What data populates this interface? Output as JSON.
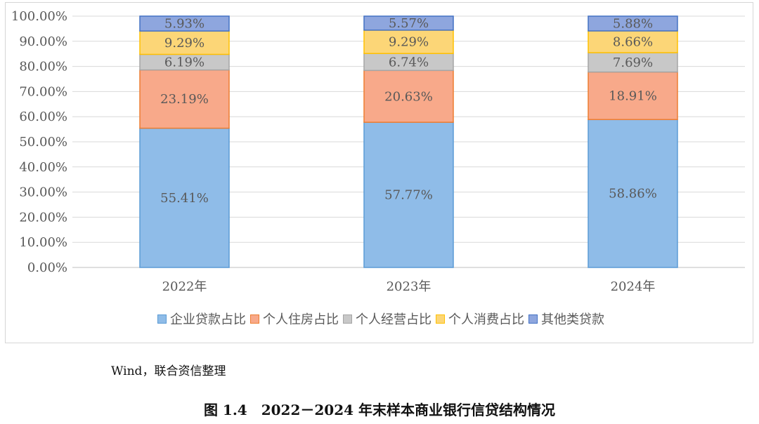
{
  "chart_data": {
    "type": "bar",
    "stacked": true,
    "categories": [
      "2022年",
      "2023年",
      "2024年"
    ],
    "series": [
      {
        "name": "企业贷款占比",
        "values": [
          55.41,
          57.77,
          58.86
        ],
        "labels": [
          "55.41%",
          "57.77%",
          "58.86%"
        ],
        "color": "#8fbce8",
        "stroke": "#5b9bd5"
      },
      {
        "name": "个人住房占比",
        "values": [
          23.19,
          20.63,
          18.91
        ],
        "labels": [
          "23.19%",
          "20.63%",
          "18.91%"
        ],
        "color": "#f8a98a",
        "stroke": "#ed7d31"
      },
      {
        "name": "个人经营占比",
        "values": [
          6.19,
          6.74,
          7.69
        ],
        "labels": [
          "6.19%",
          "6.74%",
          "7.69%"
        ],
        "color": "#c8c8c8",
        "stroke": "#a5a5a5"
      },
      {
        "name": "个人消费占比",
        "values": [
          9.29,
          9.29,
          8.66
        ],
        "labels": [
          "9.29%",
          "9.29%",
          "8.66%"
        ],
        "color": "#fcd677",
        "stroke": "#ffc000"
      },
      {
        "name": "其他类贷款",
        "values": [
          5.93,
          5.57,
          5.88
        ],
        "labels": [
          "5.93%",
          "5.57%",
          "5.88%"
        ],
        "color": "#8ea6de",
        "stroke": "#4472c4"
      }
    ],
    "yticks": [
      "0.00%",
      "10.00%",
      "20.00%",
      "30.00%",
      "40.00%",
      "50.00%",
      "60.00%",
      "70.00%",
      "80.00%",
      "90.00%",
      "100.00%"
    ],
    "ylim": [
      0,
      100
    ],
    "grid": true,
    "legend_position": "bottom"
  },
  "source_note": "Wind，联合资信整理",
  "caption": "图 1.4　2022－2024 年末样本商业银行信贷结构情况"
}
